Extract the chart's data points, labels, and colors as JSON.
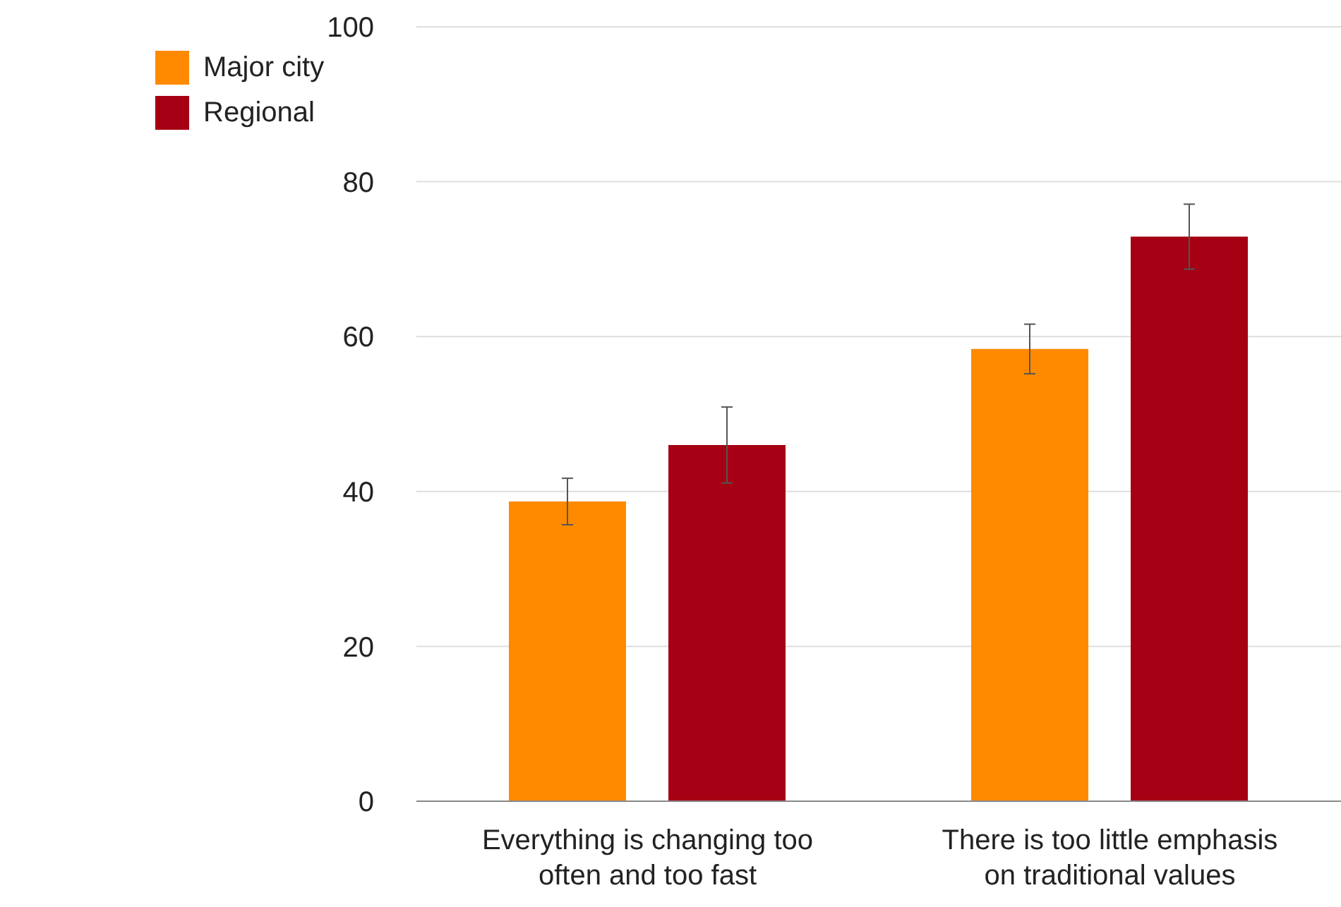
{
  "chart_data": {
    "type": "bar",
    "categories": [
      "Everything is changing too often and too fast",
      "There is too little emphasis on traditional values"
    ],
    "series": [
      {
        "name": "Major city",
        "color": "#ff8a00",
        "values": [
          38.7,
          58.4
        ],
        "errors": [
          3,
          3.2
        ]
      },
      {
        "name": "Regional",
        "color": "#a50013",
        "values": [
          46,
          72.9
        ],
        "errors": [
          4.9,
          4.2
        ]
      }
    ],
    "ylim": [
      0,
      100
    ],
    "yticks": [
      0,
      20,
      40,
      60,
      80,
      100
    ],
    "grid": "y",
    "legend": "top left"
  }
}
